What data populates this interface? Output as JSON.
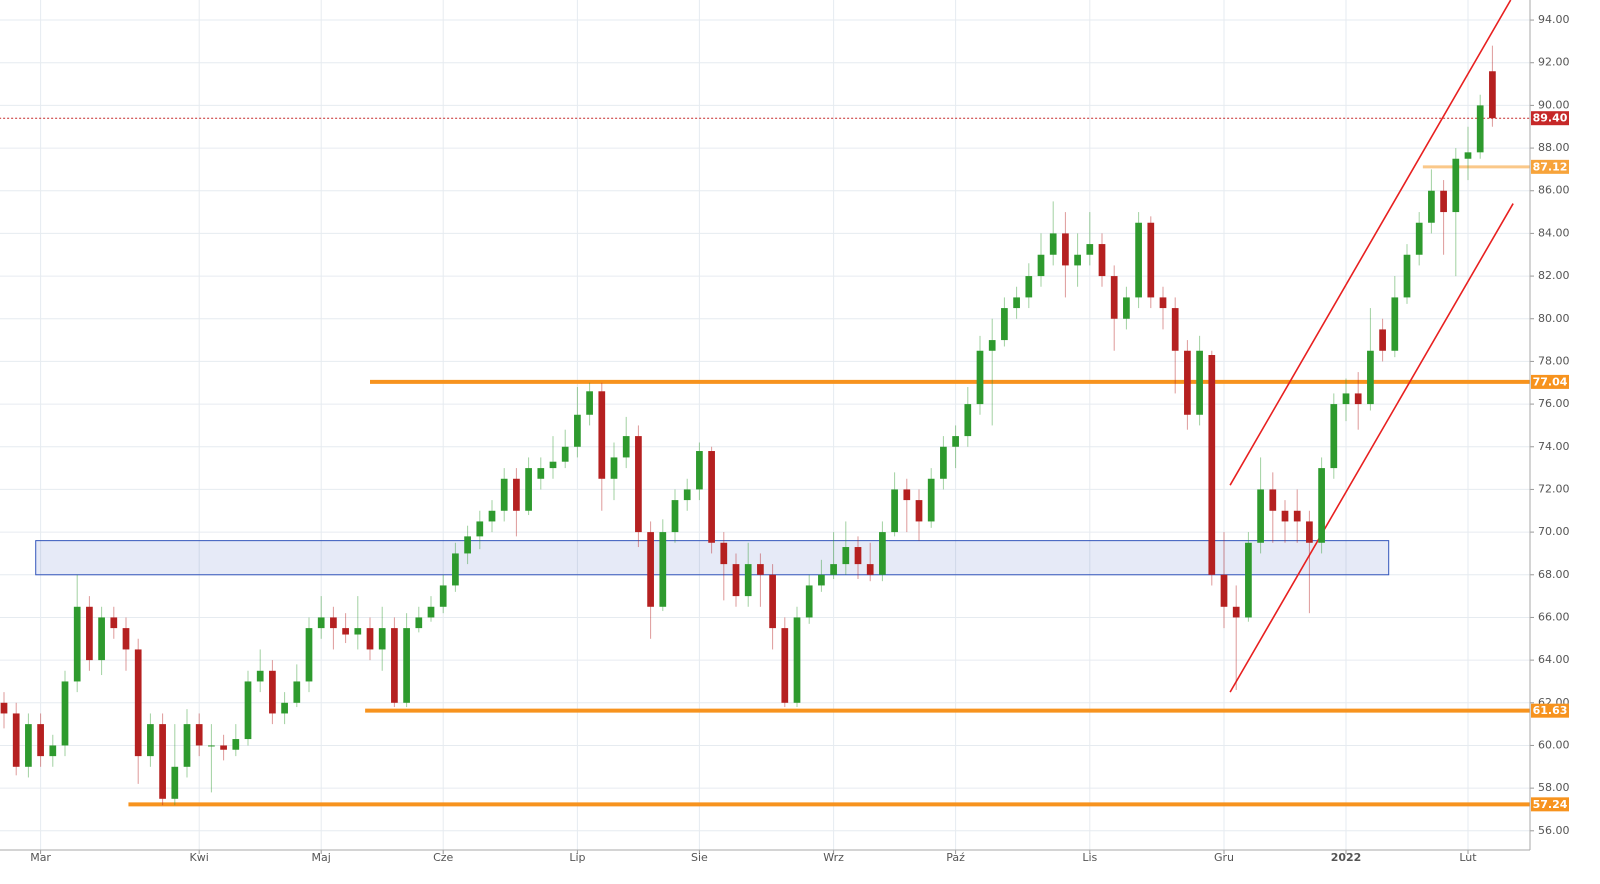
{
  "chart_data": {
    "type": "candlestick",
    "categories": [
      null,
      null,
      null,
      "Mar",
      null,
      null,
      null,
      null,
      null,
      null,
      null,
      null,
      null,
      null,
      null,
      null,
      "Kwi",
      null,
      null,
      null,
      null,
      null,
      null,
      null,
      null,
      null,
      "Maj",
      null,
      null,
      null,
      null,
      null,
      null,
      null,
      null,
      null,
      "Cze",
      null,
      null,
      null,
      null,
      null,
      null,
      null,
      null,
      null,
      null,
      "Lip",
      null,
      null,
      null,
      null,
      null,
      null,
      null,
      null,
      null,
      "Sie",
      null,
      null,
      null,
      null,
      null,
      null,
      null,
      null,
      null,
      null,
      "Wrz",
      null,
      null,
      null,
      null,
      null,
      null,
      null,
      null,
      null,
      "Paź",
      null,
      null,
      null,
      null,
      null,
      null,
      null,
      null,
      null,
      null,
      "Lis",
      null,
      null,
      null,
      null,
      null,
      null,
      null,
      null,
      null,
      null,
      "Gru",
      null,
      null,
      null,
      null,
      null,
      null,
      null,
      null,
      null,
      "2022",
      null,
      null,
      null,
      null,
      null,
      null,
      null,
      null,
      null,
      "Lut",
      null,
      null
    ],
    "open": [
      62,
      61.5,
      59,
      61,
      59.5,
      60,
      63,
      66.5,
      64,
      66,
      65.5,
      64.5,
      59.5,
      61,
      57.5,
      59,
      61,
      60,
      60,
      59.8,
      60.3,
      63,
      63.5,
      61.5,
      62,
      63,
      65.5,
      66,
      65.5,
      65.2,
      65.5,
      64.5,
      65.5,
      62,
      65.5,
      66,
      66.5,
      67.5,
      69,
      69.8,
      70.5,
      71,
      72.5,
      71,
      72.5,
      73,
      73.3,
      74,
      75.5,
      76.6,
      72.5,
      73.5,
      74.5,
      70,
      66.5,
      70,
      71.5,
      72,
      73.8,
      69.5,
      68.5,
      67,
      68.5,
      68,
      65.5,
      62,
      66,
      67.5,
      68,
      68.5,
      69.3,
      68.5,
      68,
      70,
      72,
      71.5,
      70.5,
      72.5,
      74,
      74.5,
      76,
      78.5,
      79,
      80.5,
      81,
      82,
      83,
      84,
      82.5,
      83,
      83.5,
      82,
      80,
      81,
      84.5,
      81,
      80.5,
      78.5,
      75.5,
      78.3,
      68,
      66.5,
      66,
      69.5,
      72,
      71,
      71,
      70.5,
      69.5,
      73,
      76,
      76.5,
      76,
      79.5,
      78.5,
      81,
      83,
      84.5,
      86,
      85,
      87.5,
      87.8,
      91.6
    ],
    "high": [
      62.5,
      62,
      61.5,
      61.5,
      60.5,
      63.5,
      68,
      67,
      66.5,
      66.5,
      66,
      65,
      61.5,
      61.5,
      61,
      61.7,
      61.5,
      61,
      60.5,
      61,
      63.5,
      64.5,
      64,
      62.5,
      63.8,
      66,
      67,
      66.5,
      66.2,
      67,
      66,
      66.5,
      66,
      66.2,
      66.5,
      67,
      68,
      69.5,
      70.3,
      71,
      71.5,
      73,
      73,
      73.5,
      73.5,
      74.5,
      74.8,
      76.8,
      77,
      77,
      74.2,
      75.4,
      75,
      70.5,
      70.6,
      72,
      72.5,
      74.2,
      74,
      70,
      69,
      69.5,
      69,
      68.5,
      66,
      66.5,
      68,
      68.7,
      70,
      70.5,
      69.8,
      69.5,
      70.5,
      72.8,
      72.5,
      72,
      73,
      74.5,
      75,
      76.8,
      79.2,
      80,
      81,
      81.5,
      82.6,
      84,
      85.5,
      85,
      84,
      85,
      84,
      82.5,
      81.5,
      85,
      84.8,
      81.5,
      81,
      79,
      79.2,
      78.5,
      70,
      67.5,
      70,
      73.5,
      72.8,
      71.5,
      72,
      71,
      73.5,
      76.5,
      77.2,
      77.5,
      80.5,
      80,
      82,
      83.5,
      85,
      87,
      86.5,
      88,
      89,
      90.5,
      92.8
    ],
    "low": [
      60.8,
      58.6,
      58.5,
      59,
      59,
      59.5,
      62.5,
      63.5,
      63.3,
      65,
      63.5,
      58.2,
      59,
      57.2,
      57.2,
      58.5,
      59.5,
      57.8,
      59.3,
      59.5,
      60,
      62.5,
      61,
      61,
      61.8,
      62.5,
      65,
      64.5,
      64.8,
      64.5,
      64,
      63.5,
      61.8,
      61.8,
      65.3,
      65.8,
      66.2,
      67.2,
      68.5,
      69.2,
      70,
      70.5,
      69.8,
      70.8,
      72,
      72.5,
      73,
      73.5,
      75,
      71,
      71.5,
      73,
      69.3,
      65,
      66.3,
      69.5,
      71,
      71.5,
      69,
      66.8,
      66.5,
      66.5,
      66.5,
      64.5,
      61.8,
      61.8,
      65.7,
      67.2,
      67.8,
      68,
      67.8,
      67.7,
      67.7,
      69.8,
      70,
      69.6,
      70.2,
      72,
      73,
      74,
      75.5,
      75,
      78.7,
      80,
      80.5,
      81.5,
      82.5,
      81,
      81.5,
      82.5,
      81.5,
      78.5,
      79.5,
      80.5,
      80.5,
      79.5,
      76.5,
      74.8,
      75,
      67.5,
      65.5,
      62.6,
      65.8,
      69,
      69.5,
      69.5,
      69.5,
      66.2,
      69,
      72.5,
      75.2,
      74.8,
      75.7,
      78,
      78.2,
      80.7,
      82.5,
      84,
      83,
      82,
      86.5,
      87.5,
      89
    ],
    "close": [
      61.5,
      59,
      61,
      59.5,
      60,
      63,
      66.5,
      64,
      66,
      65.5,
      64.5,
      59.5,
      61,
      57.5,
      59,
      61,
      60,
      60,
      59.8,
      60.3,
      63,
      63.5,
      61.5,
      62,
      63,
      65.5,
      66,
      65.5,
      65.2,
      65.5,
      64.5,
      65.5,
      62,
      65.5,
      66,
      66.5,
      67.5,
      69,
      69.8,
      70.5,
      71,
      72.5,
      71,
      73,
      73,
      73.3,
      74,
      75.5,
      76.6,
      72.5,
      73.5,
      74.5,
      70,
      66.5,
      70,
      71.5,
      72,
      73.8,
      69.5,
      68.5,
      67,
      68.5,
      68,
      65.5,
      62,
      66,
      67.5,
      68,
      68.5,
      69.3,
      68.5,
      68,
      70,
      72,
      71.5,
      70.5,
      72.5,
      74,
      74.5,
      76,
      78.5,
      79,
      80.5,
      81,
      82,
      83,
      84,
      82.5,
      83,
      83.5,
      82,
      80,
      81,
      84.5,
      81,
      80.5,
      78.5,
      75.5,
      78.5,
      68,
      66.5,
      66,
      69.5,
      72,
      71,
      70.5,
      70.5,
      69.5,
      73,
      76,
      76.5,
      76,
      78.5,
      78.5,
      81,
      83,
      84.5,
      86,
      85,
      87.5,
      87.8,
      90,
      89.4
    ],
    "up_color": "#2e9a2e",
    "down_color": "#b52020",
    "ylim": [
      55.1,
      94.94
    ],
    "yticks": [
      {
        "value": 56,
        "label": "56.00"
      },
      {
        "value": 58,
        "label": "58.00"
      },
      {
        "value": 60,
        "label": "60.00"
      },
      {
        "value": 62,
        "label": "62.00"
      },
      {
        "value": 64,
        "label": "64.00"
      },
      {
        "value": 66,
        "label": "66.00"
      },
      {
        "value": 68,
        "label": "68.00"
      },
      {
        "value": 70,
        "label": "70.00"
      },
      {
        "value": 72,
        "label": "72.00"
      },
      {
        "value": 74,
        "label": "74.00"
      },
      {
        "value": 76,
        "label": "76.00"
      },
      {
        "value": 78,
        "label": "78.00"
      },
      {
        "value": 80,
        "label": "80.00"
      },
      {
        "value": 82,
        "label": "82.00"
      },
      {
        "value": 84,
        "label": "84.00"
      },
      {
        "value": 86,
        "label": "86.00"
      },
      {
        "value": 88,
        "label": "88.00"
      },
      {
        "value": 90,
        "label": "90.00"
      },
      {
        "value": 92,
        "label": "92.00"
      },
      {
        "value": 94,
        "label": "94.00"
      }
    ],
    "grid": true,
    "levels": [
      {
        "value": 89.4,
        "label": "89.40",
        "color": "#c62828",
        "from": -0.4,
        "style": "dotted"
      },
      {
        "value": 87.12,
        "label": "87.12",
        "color": "#f7a33a",
        "from": 116.3,
        "style": "light"
      },
      {
        "value": 77.04,
        "label": "77.04",
        "color": "#f7931e",
        "from": 30,
        "style": "solid"
      },
      {
        "value": 61.63,
        "label": "61.63",
        "color": "#f7931e",
        "from": 29.6,
        "style": "solid"
      },
      {
        "value": 57.24,
        "label": "57.24",
        "color": "#f7931e",
        "from": 10.2,
        "style": "solid"
      }
    ],
    "zone": {
      "x": [
        2.6,
        113.5
      ],
      "y": [
        68,
        69.6
      ],
      "color": "#3355bb"
    },
    "channel": [
      {
        "x": [
          100.5,
          123.5
        ],
        "y": [
          72.2,
          94.94
        ],
        "color": "#e82020"
      },
      {
        "x": [
          100.5,
          123.7
        ],
        "y": [
          62.5,
          85.4
        ],
        "color": "#e82020"
      }
    ]
  }
}
